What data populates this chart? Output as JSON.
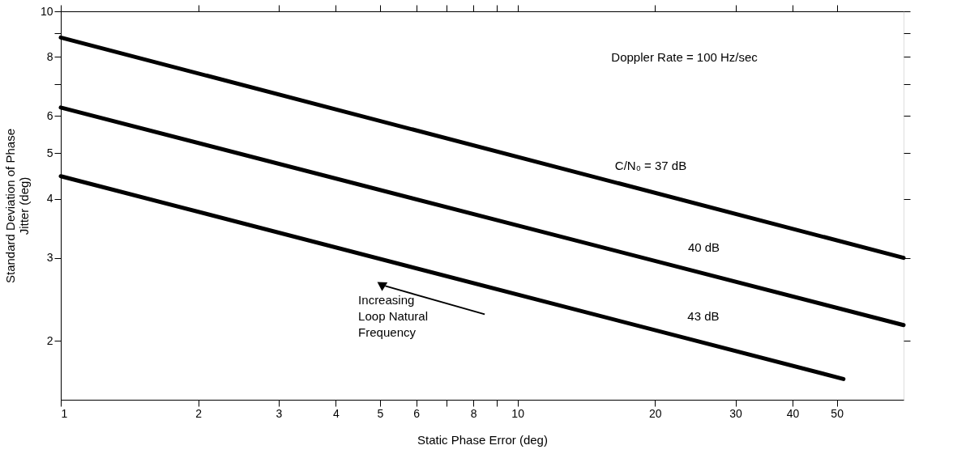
{
  "chart_data": {
    "type": "line",
    "xlabel": "Static Phase Error (deg)",
    "ylabel": "Standard Deviation of Phase Jitter (deg)",
    "log": "xy",
    "grid": false,
    "legend": false,
    "marker": "none",
    "line_style": "solid",
    "xlim": [
      1,
      70
    ],
    "ylim": [
      1.5,
      10
    ],
    "xticks": [
      1,
      2,
      3,
      4,
      5,
      6,
      {
        "value": 7,
        "label": null
      },
      8,
      {
        "value": 9,
        "label": null
      },
      10,
      20,
      30,
      40,
      50
    ],
    "yticks": [
      2,
      3,
      4,
      5,
      6,
      {
        "value": 7,
        "label": null
      },
      8,
      {
        "value": 9,
        "label": null
      },
      10
    ],
    "series": [
      {
        "name": "C/N₀ = 37 dB",
        "color": "#000000",
        "x": [
          1,
          70
        ],
        "values": [
          8.8,
          3.0
        ]
      },
      {
        "name": "40 dB",
        "color": "#000000",
        "x": [
          1,
          70
        ],
        "values": [
          6.25,
          2.16
        ]
      },
      {
        "name": "43 dB",
        "color": "#000000",
        "x": [
          1,
          51.7
        ],
        "values": [
          4.47,
          1.66
        ]
      }
    ],
    "annotations": [
      "Doppler Rate = 100 Hz/sec",
      "Increasing Loop Natural Frequency"
    ]
  }
}
